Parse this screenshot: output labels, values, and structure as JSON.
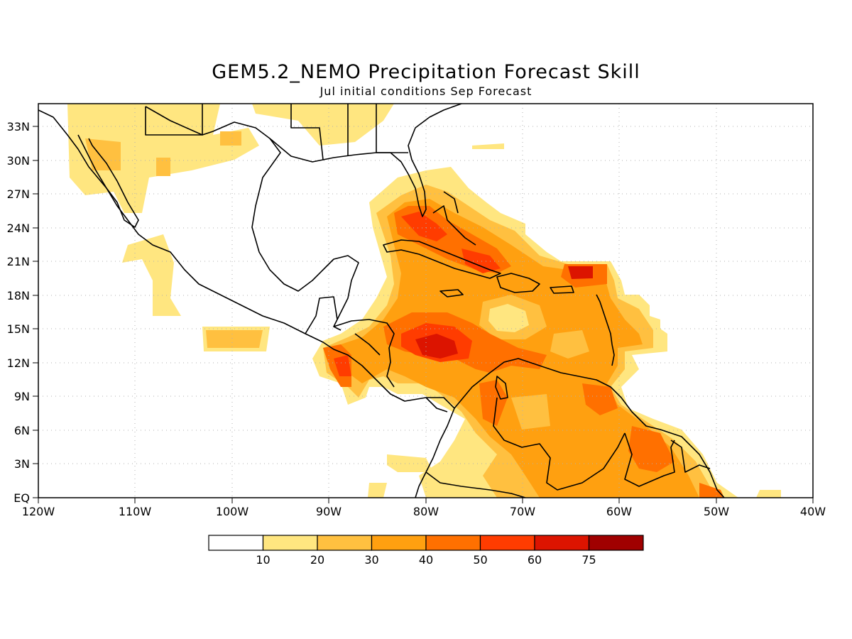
{
  "title": "GEM5.2_NEMO Precipitation Forecast Skill",
  "subtitle": "Jul initial conditions  Sep Forecast",
  "map": {
    "lon_range": [
      -120,
      -40
    ],
    "lat_range": [
      0,
      35
    ],
    "x_ticks": [
      "120W",
      "110W",
      "100W",
      "90W",
      "80W",
      "70W",
      "60W",
      "50W",
      "40W"
    ],
    "y_ticks": [
      "EQ",
      "3N",
      "6N",
      "9N",
      "12N",
      "15N",
      "18N",
      "21N",
      "24N",
      "27N",
      "30N",
      "33N"
    ],
    "grid": "dotted"
  },
  "colorbar": {
    "labels": [
      "10",
      "20",
      "30",
      "40",
      "50",
      "60",
      "75"
    ],
    "colors": [
      "#ffffff",
      "#ffe680",
      "#ffc040",
      "#ffa010",
      "#ff7000",
      "#ff3c00",
      "#dc1400",
      "#a00000"
    ]
  }
}
